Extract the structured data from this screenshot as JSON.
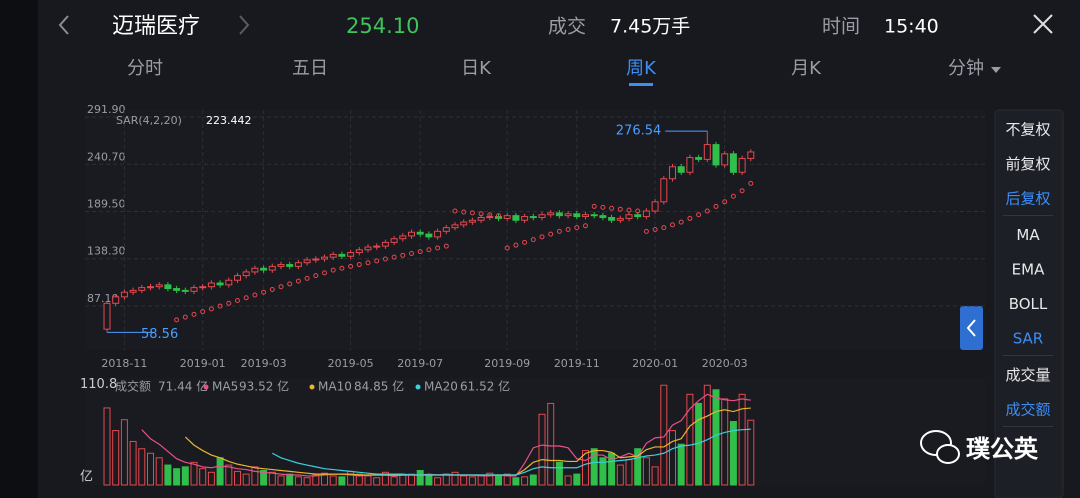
{
  "header": {
    "title": "迈瑞医疗",
    "price": "254.10",
    "volume_label": "成交",
    "volume": "7.45万手",
    "time_label": "时间",
    "time": "15:40"
  },
  "tabs": [
    {
      "label": "分时"
    },
    {
      "label": "五日"
    },
    {
      "label": "日K"
    },
    {
      "label": "周K",
      "active": true
    },
    {
      "label": "月K"
    },
    {
      "label": "分钟"
    }
  ],
  "side_menu": [
    [
      {
        "label": "不复权"
      },
      {
        "label": "前复权"
      },
      {
        "label": "后复权",
        "active": true
      }
    ],
    [
      {
        "label": "MA"
      },
      {
        "label": "EMA"
      },
      {
        "label": "BOLL"
      },
      {
        "label": "SAR",
        "active": true
      }
    ],
    [
      {
        "label": "成交量"
      },
      {
        "label": "成交额",
        "active": true
      }
    ]
  ],
  "watermark": "璞公英",
  "chart_data": [
    {
      "type": "candlestick",
      "indicator": {
        "name": "SAR(4,2,20)",
        "value": "223.442"
      },
      "up_color": "#e5484d",
      "down_color": "#2fbf4a",
      "sar_color": "#e5484d",
      "ylim": [
        39.4,
        299.5
      ],
      "yticks": [
        {
          "value": 291.9,
          "label": "291.90"
        },
        {
          "value": 240.7,
          "label": "240.70"
        },
        {
          "value": 189.5,
          "label": "189.50"
        },
        {
          "value": 138.3,
          "label": "138.30"
        },
        {
          "value": 87.1,
          "label": "87.10"
        }
      ],
      "grid": true,
      "categories": [
        null,
        null,
        "2018-11",
        null,
        null,
        null,
        null,
        null,
        null,
        null,
        null,
        "2019-01",
        null,
        null,
        null,
        null,
        null,
        null,
        "2019-03",
        null,
        null,
        null,
        null,
        null,
        null,
        null,
        null,
        null,
        "2019-05",
        null,
        null,
        null,
        null,
        null,
        null,
        null,
        "2019-07",
        null,
        null,
        null,
        null,
        null,
        null,
        null,
        null,
        null,
        "2019-09",
        null,
        null,
        null,
        null,
        null,
        null,
        null,
        "2019-11",
        null,
        null,
        null,
        null,
        null,
        null,
        null,
        null,
        "2020-01",
        null,
        null,
        null,
        null,
        null,
        null,
        null,
        "2020-03",
        null,
        null,
        null
      ],
      "open": [
        62,
        90,
        97,
        102,
        104,
        107,
        108,
        110,
        106,
        104,
        103,
        107,
        108,
        112,
        110,
        115,
        120,
        124,
        128,
        126,
        130,
        132,
        130,
        134,
        137,
        138,
        140,
        143,
        141,
        145,
        148,
        151,
        152,
        156,
        160,
        163,
        167,
        165,
        162,
        168,
        172,
        175,
        178,
        180,
        183,
        184,
        182,
        185,
        180,
        184,
        183,
        186,
        188,
        185,
        187,
        184,
        186,
        185,
        183,
        180,
        182,
        186,
        184,
        190,
        200,
        225,
        238,
        232,
        248,
        246,
        262,
        240,
        252,
        232,
        247
      ],
      "high": [
        92,
        100,
        105,
        107,
        110,
        111,
        113,
        113,
        109,
        107,
        110,
        111,
        115,
        115,
        118,
        123,
        127,
        131,
        131,
        133,
        135,
        135,
        137,
        140,
        141,
        143,
        146,
        146,
        148,
        151,
        154,
        155,
        159,
        163,
        166,
        170,
        170,
        168,
        171,
        175,
        178,
        181,
        183,
        186,
        187,
        187,
        188,
        188,
        187,
        187,
        189,
        191,
        191,
        190,
        190,
        189,
        189,
        188,
        186,
        185,
        189,
        189,
        193,
        203,
        228,
        241,
        241,
        251,
        251,
        276.54,
        265,
        255,
        255,
        250,
        257
      ],
      "low": [
        58.56,
        87,
        94,
        99,
        101,
        104,
        105,
        103,
        101,
        100,
        100,
        104,
        105,
        107,
        107,
        112,
        117,
        121,
        123,
        123,
        127,
        127,
        127,
        131,
        134,
        135,
        137,
        138,
        138,
        142,
        145,
        148,
        149,
        153,
        157,
        160,
        162,
        159,
        159,
        165,
        169,
        172,
        175,
        177,
        180,
        179,
        179,
        177,
        177,
        180,
        180,
        183,
        182,
        182,
        181,
        181,
        182,
        180,
        177,
        177,
        179,
        181,
        181,
        187,
        197,
        222,
        229,
        229,
        243,
        243,
        237,
        237,
        229,
        229,
        244
      ],
      "close": [
        90,
        97,
        102,
        104,
        107,
        108,
        110,
        106,
        104,
        103,
        107,
        108,
        112,
        110,
        115,
        120,
        124,
        128,
        126,
        130,
        132,
        130,
        134,
        137,
        138,
        140,
        143,
        141,
        145,
        148,
        151,
        152,
        156,
        160,
        163,
        167,
        165,
        162,
        168,
        172,
        175,
        178,
        180,
        183,
        184,
        182,
        185,
        180,
        184,
        183,
        186,
        188,
        185,
        187,
        184,
        186,
        185,
        183,
        180,
        182,
        186,
        184,
        190,
        200,
        225,
        238,
        232,
        248,
        246,
        262,
        240,
        252,
        232,
        247,
        254
      ],
      "sar": [
        null,
        null,
        null,
        null,
        null,
        null,
        null,
        null,
        72,
        75,
        78,
        81,
        84,
        87,
        90,
        93,
        96,
        99,
        102,
        105,
        108,
        111,
        114,
        117,
        120,
        123,
        126,
        128,
        130,
        132,
        134,
        136,
        138,
        140,
        142,
        144,
        146,
        148,
        150,
        152,
        190,
        189,
        188,
        187,
        186,
        185,
        150,
        153,
        156,
        159,
        162,
        165,
        168,
        170,
        172,
        174,
        195,
        194,
        193,
        192,
        191,
        190,
        168,
        170,
        172,
        175,
        178,
        182,
        186,
        190,
        195,
        200,
        206,
        212,
        220
      ],
      "annotations": [
        {
          "label": "276.54",
          "value": 276.54
        },
        {
          "label": "58.56",
          "value": 58.56
        }
      ]
    },
    {
      "type": "bar",
      "name": "成交额",
      "last_label": "71.44 亿",
      "ylim": [
        0,
        118
      ],
      "yticks": [
        110.8,
        {
          "value": 0,
          "label": "亿"
        }
      ],
      "values": [
        85,
        60,
        72,
        48,
        40,
        35,
        30,
        22,
        18,
        20,
        25,
        18,
        14,
        30,
        22,
        15,
        12,
        20,
        16,
        14,
        10,
        12,
        9,
        8,
        11,
        13,
        10,
        9,
        15,
        12,
        10,
        8,
        14,
        9,
        11,
        12,
        16,
        10,
        8,
        12,
        14,
        10,
        9,
        11,
        13,
        10,
        12,
        8,
        9,
        11,
        78,
        90,
        25,
        10,
        12,
        38,
        40,
        30,
        35,
        22,
        28,
        40,
        30,
        20,
        110,
        60,
        45,
        100,
        90,
        110,
        105,
        95,
        70,
        100,
        71.44
      ],
      "series": [
        {
          "name": "MA5",
          "last_label": "93.52 亿",
          "color": "#e8508a",
          "values": [
            null,
            null,
            null,
            null,
            61,
            51,
            45,
            37,
            29,
            25,
            23,
            20,
            19,
            21,
            20,
            18,
            17,
            15,
            14,
            13,
            12,
            11,
            11,
            10,
            10,
            11,
            12,
            12,
            11,
            10,
            11,
            11,
            11,
            10,
            11,
            11,
            11,
            12,
            11,
            12,
            11,
            11,
            11,
            10,
            10,
            11,
            10,
            10,
            24,
            41,
            44,
            43,
            43,
            41,
            29,
            27,
            33,
            33,
            28,
            31,
            35,
            31,
            46,
            52,
            53,
            66,
            71,
            84,
            93,
            100,
            96,
            94,
            93,
            95,
            93.52
          ]
        },
        {
          "name": "MA10",
          "last_label": "84.85 亿",
          "color": "#e9b52c",
          "values": [
            null,
            null,
            null,
            null,
            null,
            null,
            null,
            null,
            null,
            53,
            44,
            38,
            33,
            30,
            26,
            23,
            21,
            19,
            18,
            17,
            16,
            15,
            14,
            13,
            12,
            12,
            12,
            12,
            12,
            11,
            11,
            11,
            11,
            11,
            11,
            11,
            11,
            11,
            11,
            11,
            11,
            11,
            11,
            11,
            11,
            11,
            11,
            11,
            17,
            25,
            28,
            27,
            27,
            26,
            26,
            35,
            38,
            38,
            36,
            30,
            31,
            32,
            39,
            42,
            42,
            48,
            51,
            65,
            72,
            76,
            81,
            83,
            81,
            84,
            84.85
          ]
        },
        {
          "name": "MA20",
          "last_label": "61.52 亿",
          "color": "#3ccfe0",
          "values": [
            null,
            null,
            null,
            null,
            null,
            null,
            null,
            null,
            null,
            null,
            null,
            null,
            null,
            null,
            null,
            null,
            null,
            null,
            null,
            35,
            30,
            27,
            24,
            22,
            20,
            18,
            17,
            16,
            15,
            14,
            13,
            12,
            12,
            12,
            12,
            11,
            11,
            11,
            11,
            11,
            11,
            11,
            11,
            11,
            11,
            11,
            11,
            11,
            14,
            18,
            20,
            19,
            19,
            19,
            19,
            23,
            25,
            25,
            26,
            27,
            28,
            30,
            32,
            33,
            35,
            40,
            43,
            44,
            46,
            50,
            55,
            58,
            60,
            61,
            61.52
          ]
        }
      ]
    }
  ]
}
